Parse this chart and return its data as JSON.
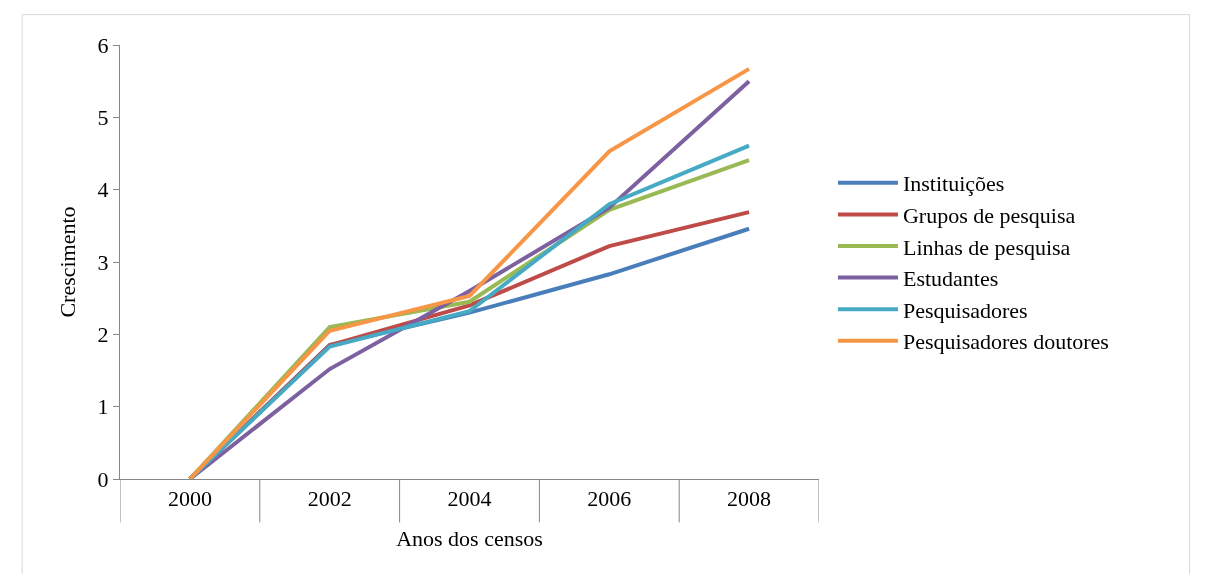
{
  "chart_data": {
    "type": "line",
    "xlabel": "Anos dos censos",
    "ylabel": "Crescimento",
    "categories": [
      "2000",
      "2002",
      "2004",
      "2006",
      "2008"
    ],
    "series": [
      {
        "name": "Instituições",
        "color": "#4a7ebb",
        "values": [
          0,
          1.85,
          2.3,
          2.83,
          3.46
        ]
      },
      {
        "name": "Grupos de pesquisa",
        "color": "#be4b48",
        "values": [
          0,
          1.85,
          2.4,
          3.22,
          3.69
        ]
      },
      {
        "name": "Linhas de pesquisa",
        "color": "#98b954",
        "values": [
          0,
          2.1,
          2.45,
          3.72,
          4.41
        ]
      },
      {
        "name": "Estudantes",
        "color": "#7d60a0",
        "values": [
          0,
          1.52,
          2.6,
          3.75,
          5.5
        ]
      },
      {
        "name": "Pesquisadores",
        "color": "#46aac5",
        "values": [
          0,
          1.83,
          2.32,
          3.8,
          4.61
        ]
      },
      {
        "name": "Pesquisadores doutores",
        "color": "#f79646",
        "values": [
          0,
          2.05,
          2.53,
          4.53,
          5.67
        ]
      }
    ],
    "ylim": [
      0,
      6
    ],
    "yticks": [
      0,
      1,
      2,
      3,
      4,
      5,
      6
    ],
    "legend": "right",
    "marker": "none",
    "line_style": "solid"
  }
}
